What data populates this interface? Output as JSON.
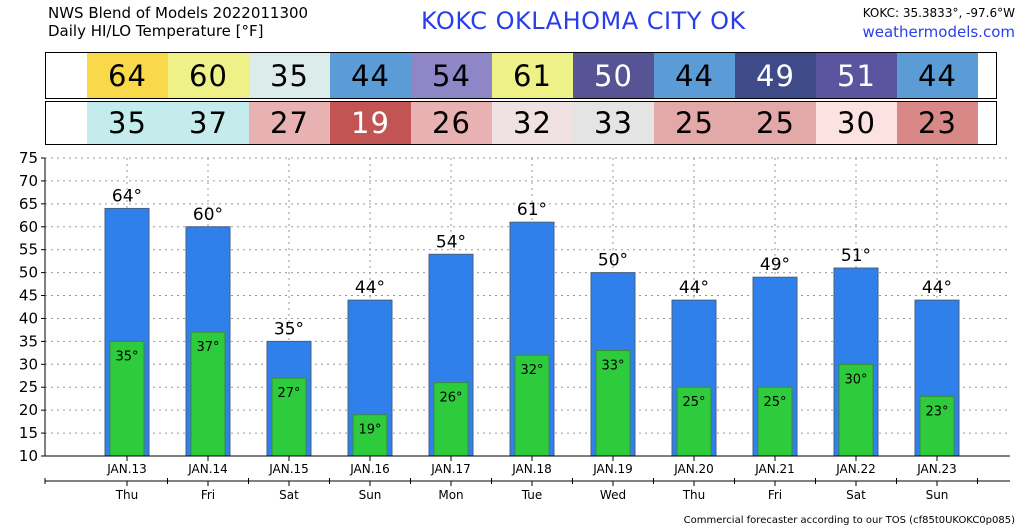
{
  "header": {
    "model_line": "NWS Blend of Models 2022011300",
    "product_line": "Daily HI/LO Temperature [°F]",
    "station_title": "KOKC   OKLAHOMA CITY   OK",
    "coords": "KOKC: 35.3833°, -97.6°W",
    "site": "weathermodels.com"
  },
  "strips": {
    "hi_colors": [
      "#f9d94a",
      "#eef088",
      "#dbeceb",
      "#5b9bd6",
      "#8e86c6",
      "#eef088",
      "#565495",
      "#5b9bd6",
      "#3f4b88",
      "#5b55a0",
      "#5b9bd6"
    ],
    "hi_text_colors": [
      "#000000",
      "#000000",
      "#000000",
      "#000000",
      "#000000",
      "#000000",
      "#ffffff",
      "#000000",
      "#ffffff",
      "#ffffff",
      "#000000"
    ],
    "lo_colors": [
      "#c5ecec",
      "#c5ecec",
      "#e9b2b2",
      "#c25454",
      "#e9b2b2",
      "#f0e2e2",
      "#e4e4e4",
      "#e3a8a8",
      "#e3a8a8",
      "#fde2e2",
      "#d98888"
    ],
    "lo_text_colors": [
      "#000000",
      "#000000",
      "#000000",
      "#ffffff",
      "#000000",
      "#000000",
      "#000000",
      "#000000",
      "#000000",
      "#000000",
      "#000000"
    ]
  },
  "chart_data": {
    "type": "bar",
    "categories": [
      "JAN.13",
      "JAN.14",
      "JAN.15",
      "JAN.16",
      "JAN.17",
      "JAN.18",
      "JAN.19",
      "JAN.20",
      "JAN.21",
      "JAN.22",
      "JAN.23"
    ],
    "weekdays": [
      "Thu",
      "Fri",
      "Sat",
      "Sun",
      "Mon",
      "Tue",
      "Wed",
      "Thu",
      "Fri",
      "Sat",
      "Sun"
    ],
    "series": [
      {
        "values": [
          64,
          60,
          35,
          44,
          54,
          61,
          50,
          44,
          49,
          51,
          44
        ],
        "color": "#2f80ea"
      },
      {
        "values": [
          35,
          37,
          27,
          19,
          26,
          32,
          33,
          25,
          25,
          30,
          23
        ],
        "color": "#2ecc3c"
      }
    ],
    "ylim": [
      10,
      75
    ],
    "yticks": [
      10,
      15,
      20,
      25,
      30,
      35,
      40,
      45,
      50,
      55,
      60,
      65,
      70,
      75
    ],
    "grid": true,
    "degree_symbol": "°"
  },
  "footer": {
    "text": "Commercial forecaster according to our TOS (cf85t0UKOKC0p085)"
  }
}
